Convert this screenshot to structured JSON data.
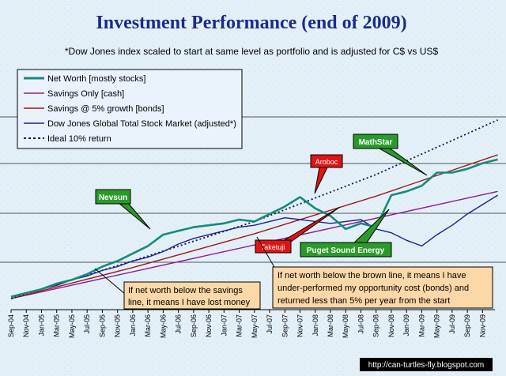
{
  "title": "Investment Performance  (end of 2009)",
  "subtitle": "*Dow Jones index scaled to start at same level as portfolio and is adjusted for C$ vs US$",
  "footer": "http://can-turtles-fly.blogspot.com",
  "colors": {
    "background": "#e4f0f8",
    "net_worth": "#178a7a",
    "savings_only": "#8e1d8e",
    "savings_5pct": "#a01818",
    "dow_jones": "#20208c",
    "ideal": "#101050",
    "callout_green": "#2a9a2a",
    "callout_red": "#e01414",
    "note_fill": "#fbd8a8"
  },
  "chart_data": {
    "type": "line",
    "x_start": "Sep-04",
    "x_end": "Dec-09",
    "x_step": "month",
    "xtick_labels": [
      "Sep-04",
      "Nov-04",
      "Jan-05",
      "Mar-05",
      "May-05",
      "Jul-05",
      "Sep-05",
      "Nov-05",
      "Jan-06",
      "Mar-06",
      "May-06",
      "Jul-06",
      "Sep-06",
      "Nov-06",
      "Jan-07",
      "Mar-07",
      "May-07",
      "Jul-07",
      "Sep-07",
      "Nov-07",
      "Jan-08",
      "Mar-08",
      "May-08",
      "Jul-08",
      "Sep-08",
      "Nov-08",
      "Jan-09",
      "Mar-09",
      "May-09",
      "Jul-09",
      "Sep-09",
      "Nov-09"
    ],
    "y_tick_labels_shown": false,
    "y_range": [
      0,
      1
    ],
    "gridlines": "horizontal",
    "legend_position": "top-left",
    "series": [
      {
        "name": "Net Worth [mostly stocks]",
        "key": "net_worth",
        "style": "solid-thick",
        "x": [
          0,
          2,
          4,
          6,
          8,
          10,
          12,
          14,
          16,
          18,
          20,
          22,
          24,
          26,
          28,
          30,
          32,
          34,
          36,
          38,
          40,
          42,
          44,
          46,
          48,
          50,
          52,
          54,
          56,
          58,
          60,
          62,
          64
        ],
        "y": [
          0.01,
          0.03,
          0.05,
          0.08,
          0.1,
          0.13,
          0.17,
          0.2,
          0.24,
          0.28,
          0.34,
          0.36,
          0.38,
          0.39,
          0.4,
          0.42,
          0.41,
          0.45,
          0.49,
          0.54,
          0.48,
          0.44,
          0.37,
          0.4,
          0.38,
          0.55,
          0.57,
          0.6,
          0.67,
          0.67,
          0.69,
          0.72,
          0.74
        ]
      },
      {
        "name": "Savings Only [cash]",
        "key": "savings_only",
        "style": "solid",
        "x": [
          0,
          64
        ],
        "y": [
          0.0,
          0.57
        ]
      },
      {
        "name": "Savings @ 5% growth [bonds]",
        "key": "savings_5pct",
        "style": "solid",
        "x": [
          0,
          16,
          32,
          48,
          64
        ],
        "y": [
          0.0,
          0.165,
          0.345,
          0.545,
          0.765
        ]
      },
      {
        "name": "Dow Jones Global Total Stock Market (adjusted*)",
        "key": "dow_jones",
        "style": "solid",
        "x": [
          0,
          2,
          4,
          6,
          8,
          10,
          12,
          14,
          16,
          18,
          20,
          22,
          24,
          26,
          28,
          30,
          32,
          34,
          36,
          38,
          40,
          42,
          44,
          46,
          48,
          50,
          52,
          54,
          56,
          58,
          60,
          62,
          64
        ],
        "y": [
          0.01,
          0.03,
          0.05,
          0.07,
          0.1,
          0.12,
          0.15,
          0.17,
          0.2,
          0.22,
          0.25,
          0.29,
          0.32,
          0.34,
          0.36,
          0.38,
          0.39,
          0.41,
          0.43,
          0.42,
          0.41,
          0.4,
          0.41,
          0.42,
          0.37,
          0.35,
          0.31,
          0.28,
          0.34,
          0.39,
          0.45,
          0.5,
          0.55
        ]
      },
      {
        "name": "Ideal 10% return",
        "key": "ideal",
        "style": "dotted",
        "x": [
          0,
          16,
          32,
          48,
          64
        ],
        "y": [
          0.0,
          0.2,
          0.41,
          0.66,
          0.95
        ]
      }
    ],
    "annotations": [
      {
        "text": "Nevsun",
        "style": "green"
      },
      {
        "text": "Aroboc",
        "style": "red"
      },
      {
        "text": "MathStar",
        "style": "green"
      },
      {
        "text": "Taketuji",
        "style": "red"
      },
      {
        "text": "Puget Sound Energy",
        "style": "green"
      }
    ],
    "notes": [
      {
        "key": "savings_note",
        "lines": [
          "If net worth below the savings",
          "line, it means I have lost money"
        ]
      },
      {
        "key": "bonds_note",
        "lines": [
          "If net worth below the brown line, it means I have",
          "under-performed my opportunity cost (bonds) and",
          "returned less than 5% per year from the start"
        ]
      }
    ]
  }
}
